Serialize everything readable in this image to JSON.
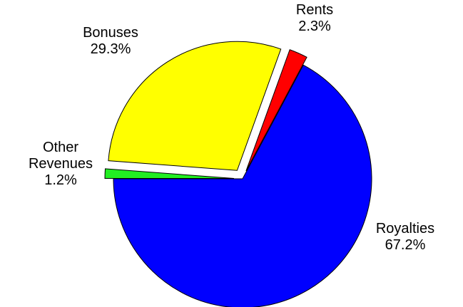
{
  "chart_data": {
    "type": "pie",
    "categories": [
      "Royalties",
      "Other Revenues",
      "Bonuses",
      "Rents"
    ],
    "values": [
      67.2,
      1.2,
      29.3,
      2.3
    ],
    "value_labels": [
      "67.2%",
      "1.2%",
      "29.3%",
      "2.3%"
    ],
    "colors": [
      "#0000ff",
      "#22ee22",
      "#ffff00",
      "#ff0000"
    ]
  }
}
